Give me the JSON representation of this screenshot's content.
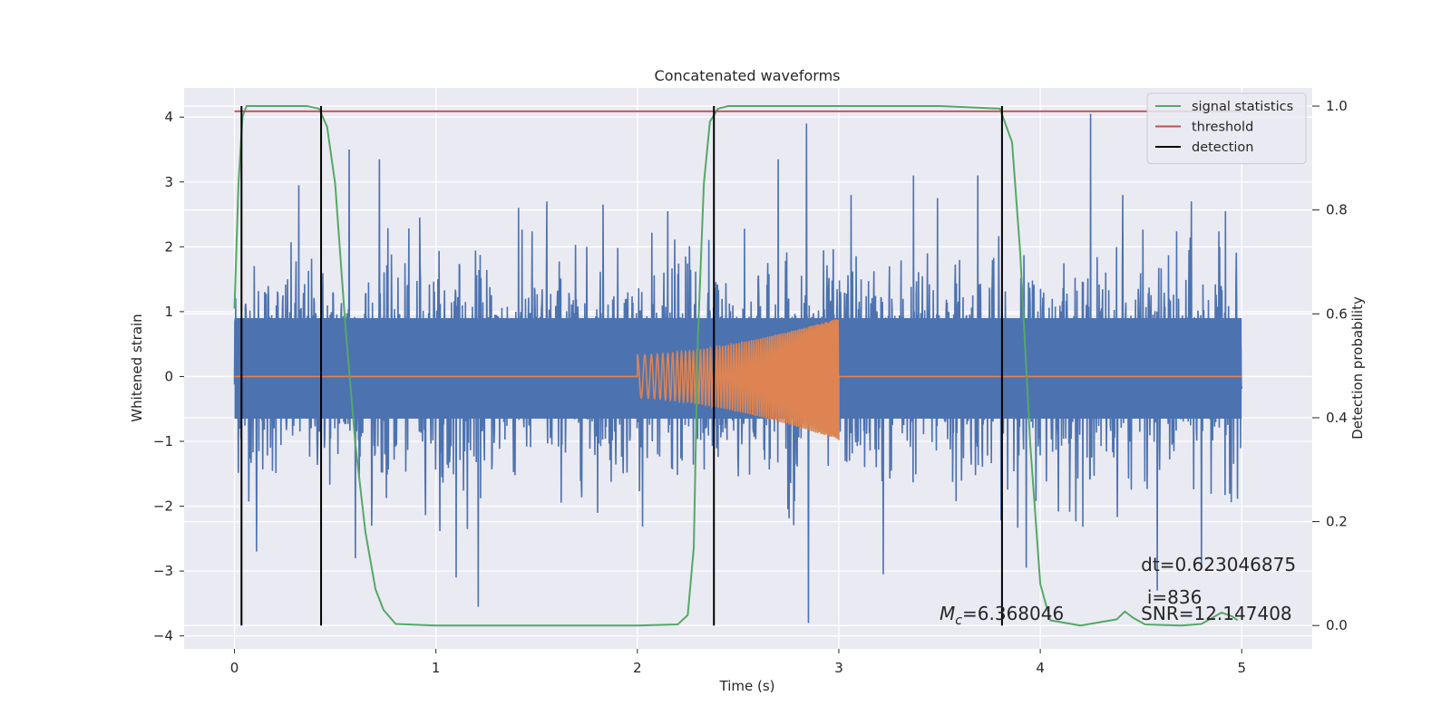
{
  "chart_data": {
    "type": "line",
    "title": "Concatenated waveforms",
    "xlabel": "Time (s)",
    "ylabel": "Whitened strain",
    "y2label": "Detection probability",
    "xlim": [
      -0.25,
      5.35
    ],
    "ylim": [
      -4.2,
      4.45
    ],
    "y2lim": [
      -0.045,
      1.035
    ],
    "x_ticks": [
      0,
      1,
      2,
      3,
      4,
      5
    ],
    "y_ticks": [
      -4,
      -3,
      -2,
      -1,
      0,
      1,
      2,
      3,
      4
    ],
    "y2_ticks": [
      0.0,
      0.2,
      0.4,
      0.6,
      0.8,
      1.0
    ],
    "x_tick_labels": [
      "0",
      "1",
      "2",
      "3",
      "4",
      "5"
    ],
    "y_tick_labels": [
      "−4",
      "−3",
      "−2",
      "−1",
      "0",
      "1",
      "2",
      "3",
      "4"
    ],
    "y2_tick_labels": [
      "0.0",
      "0.2",
      "0.4",
      "0.6",
      "0.8",
      "1.0"
    ],
    "grid": true,
    "legend_position": "top-right",
    "colors": {
      "strain": "#4c72b0",
      "template": "#dd8452",
      "signal_statistics": "#55a868",
      "threshold": "#c44e52",
      "detection": "#000000",
      "plot_bg": "#eaeaf2",
      "grid": "#ffffff"
    },
    "series": [
      {
        "key": "strain",
        "axis": "left",
        "noise": {
          "x_range": [
            0,
            5
          ],
          "core_band": [
            -0.65,
            0.9
          ],
          "typical_peak": 2.3,
          "spikes": [
            {
              "x": 0.32,
              "y": 2.95
            },
            {
              "x": 0.57,
              "y": 3.5
            },
            {
              "x": 0.72,
              "y": 3.35
            },
            {
              "x": 0.92,
              "y": 2.45
            },
            {
              "x": 1.1,
              "y": -3.1
            },
            {
              "x": 1.21,
              "y": -3.55
            },
            {
              "x": 1.41,
              "y": 2.6
            },
            {
              "x": 1.55,
              "y": 2.7
            },
            {
              "x": 1.83,
              "y": 2.65
            },
            {
              "x": 2.15,
              "y": 2.55
            },
            {
              "x": 2.7,
              "y": 3.35
            },
            {
              "x": 2.84,
              "y": 3.9
            },
            {
              "x": 2.85,
              "y": -3.8
            },
            {
              "x": 3.06,
              "y": 2.8
            },
            {
              "x": 3.22,
              "y": -3.05
            },
            {
              "x": 3.37,
              "y": 3.1
            },
            {
              "x": 3.49,
              "y": 2.75
            },
            {
              "x": 3.69,
              "y": 3.1
            },
            {
              "x": 4.25,
              "y": 4.05
            },
            {
              "x": 4.41,
              "y": 2.8
            },
            {
              "x": 4.58,
              "y": -3.3
            },
            {
              "x": 4.75,
              "y": 2.7
            },
            {
              "x": 4.92,
              "y": 2.55
            },
            {
              "x": 0.11,
              "y": -2.7
            },
            {
              "x": 0.6,
              "y": -2.8
            },
            {
              "x": 3.93,
              "y": -2.95
            },
            {
              "x": 4.8,
              "y": -2.9
            }
          ]
        }
      },
      {
        "key": "template",
        "axis": "left",
        "chirp": {
          "start": 2.0,
          "end": 3.0,
          "amp_start": 0.33,
          "amp_end": 0.9,
          "amp_end_neg": -0.98,
          "f_start": 25,
          "f_end": 130
        }
      },
      {
        "key": "signal_statistics",
        "name": "signal statistics",
        "axis": "right",
        "x": [
          0.0,
          0.02,
          0.04,
          0.06,
          0.1,
          0.2,
          0.36,
          0.42,
          0.46,
          0.5,
          0.55,
          0.6,
          0.65,
          0.7,
          0.74,
          0.8,
          1.0,
          1.5,
          2.0,
          2.2,
          2.25,
          2.28,
          2.3,
          2.33,
          2.36,
          2.4,
          2.45,
          2.5,
          3.0,
          3.5,
          3.8,
          3.86,
          3.9,
          3.95,
          4.0,
          4.05,
          4.2,
          4.38,
          4.42,
          4.46,
          4.52,
          4.7,
          4.8,
          4.9,
          4.95,
          4.98
        ],
        "y": [
          0.61,
          0.85,
          0.98,
          1.0,
          1.0,
          1.0,
          1.0,
          0.995,
          0.96,
          0.85,
          0.58,
          0.35,
          0.18,
          0.07,
          0.03,
          0.003,
          0.0,
          0.0,
          0.0,
          0.002,
          0.02,
          0.15,
          0.55,
          0.85,
          0.97,
          0.995,
          1.0,
          1.0,
          1.0,
          1.0,
          0.995,
          0.93,
          0.72,
          0.35,
          0.08,
          0.01,
          0.0,
          0.012,
          0.027,
          0.015,
          0.002,
          0.0,
          0.003,
          0.025,
          0.018,
          0.01
        ]
      },
      {
        "key": "threshold",
        "name": "threshold",
        "axis": "right",
        "x": [
          0.0,
          5.0
        ],
        "y": [
          0.99,
          0.99
        ]
      },
      {
        "key": "detection",
        "name": "detection",
        "axis": "right",
        "x": [
          0.035,
          0.43,
          2.38,
          3.81
        ],
        "y_range": [
          0.0,
          1.0
        ]
      }
    ],
    "annotations": [
      {
        "key": "mc",
        "text": "=6.368046",
        "math_symbol": "M",
        "math_subscript": "c",
        "x": 3.5,
        "y": -3.75
      },
      {
        "key": "dt",
        "text": "dt=0.623046875",
        "x": 4.5,
        "y": -3.0
      },
      {
        "key": "i",
        "text": "i=836",
        "x": 4.53,
        "y": -3.5
      },
      {
        "key": "snr",
        "text": "SNR=12.147408",
        "x": 4.5,
        "y": -3.75
      }
    ]
  }
}
